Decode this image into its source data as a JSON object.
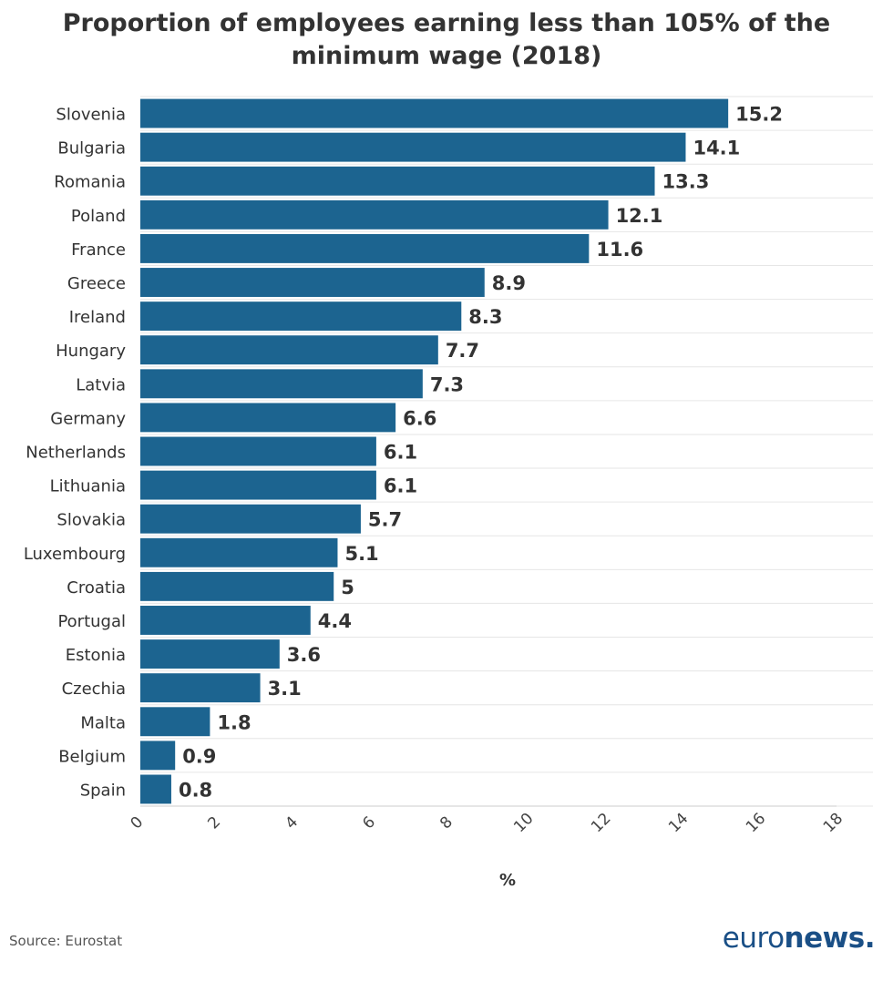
{
  "chart_data": {
    "type": "bar",
    "orientation": "horizontal",
    "title_line1": "Proportion of employees earning less than 105% of the",
    "title_line2": "minimum wage (2018)",
    "categories": [
      "Slovenia",
      "Bulgaria",
      "Romania",
      "Poland",
      "France",
      "Greece",
      "Ireland",
      "Hungary",
      "Latvia",
      "Germany",
      "Netherlands",
      "Lithuania",
      "Slovakia",
      "Luxembourg",
      "Croatia",
      "Portugal",
      "Estonia",
      "Czechia",
      "Malta",
      "Belgium",
      "Spain"
    ],
    "values": [
      15.2,
      14.1,
      13.3,
      12.1,
      11.6,
      8.9,
      8.3,
      7.7,
      7.3,
      6.6,
      6.1,
      6.1,
      5.7,
      5.1,
      5,
      4.4,
      3.6,
      3.1,
      1.8,
      0.9,
      0.8
    ],
    "xlabel": "%",
    "ylabel": "",
    "xlim": [
      0,
      18
    ],
    "xticks": [
      0,
      2,
      4,
      6,
      8,
      10,
      12,
      14,
      16,
      18
    ],
    "grid": true,
    "bar_color": "#1c6490"
  },
  "footer": {
    "source": "Source: Eurostat",
    "logo_part1": "euro",
    "logo_part2": "news",
    "logo_dot": "."
  }
}
